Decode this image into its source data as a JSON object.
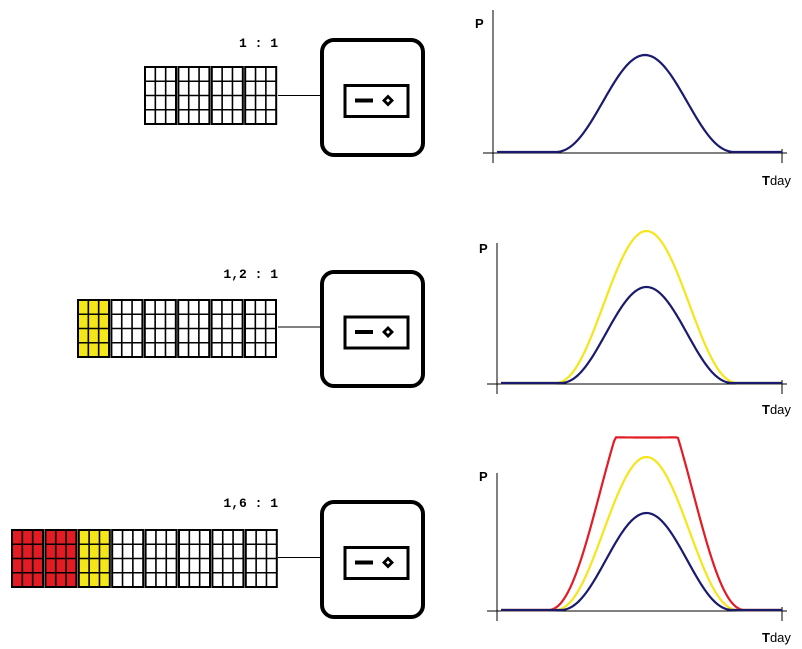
{
  "rows": [
    {
      "ratio": "1 : 1",
      "y_axis": "P",
      "x_axis": {
        "bold": "T",
        "rest": "day"
      }
    },
    {
      "ratio": "1,2 : 1",
      "y_axis": "P",
      "x_axis": {
        "bold": "T",
        "rest": "day"
      }
    },
    {
      "ratio": "1,6 : 1",
      "y_axis": "P",
      "x_axis": {
        "bold": "T",
        "rest": "day"
      }
    }
  ]
}
